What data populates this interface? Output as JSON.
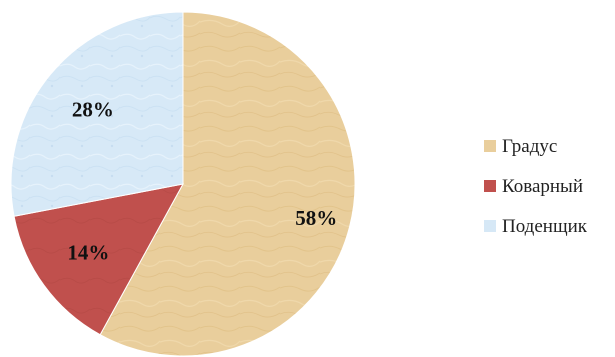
{
  "chart_data": {
    "type": "pie",
    "categories": [
      "Градус",
      "Коварный",
      "Поденщик"
    ],
    "values": [
      58,
      14,
      28
    ],
    "labels": [
      "58%",
      "14%",
      "28%"
    ],
    "colors": [
      "#e9ce9c",
      "#c0504d",
      "#d6e8f6"
    ],
    "legend_position": "right",
    "start": "top",
    "direction": "clockwise"
  }
}
